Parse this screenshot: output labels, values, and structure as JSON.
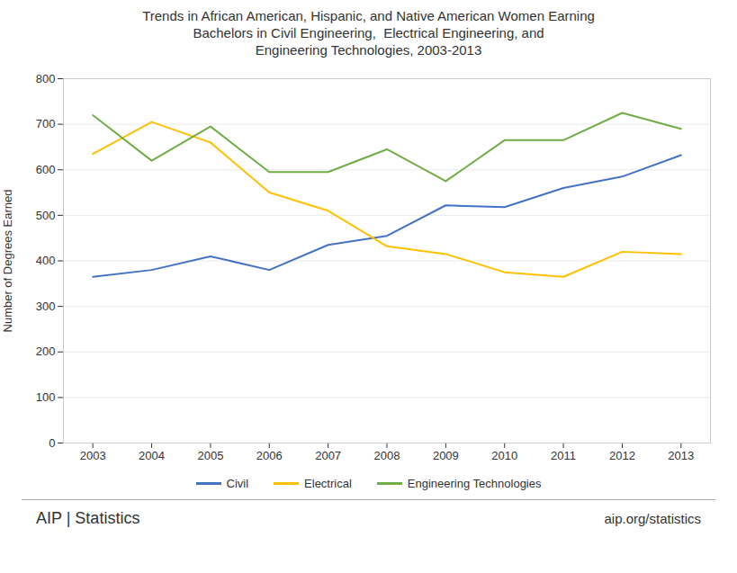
{
  "chart_data": {
    "type": "line",
    "title": "Trends in African American, Hispanic, and Native American Women Earning\nBachelors in Civil Engineering,  Electrical Engineering, and\nEngineering Technologies, 2003-2013",
    "ylabel": "Number of Degrees Earned",
    "x": [
      2003,
      2004,
      2005,
      2006,
      2007,
      2008,
      2009,
      2010,
      2011,
      2012,
      2013
    ],
    "series": [
      {
        "name": "Civil",
        "color": "#4472C4",
        "values": [
          365,
          380,
          410,
          380,
          435,
          455,
          522,
          518,
          560,
          585,
          632
        ]
      },
      {
        "name": "Electrical",
        "color": "#FFC000",
        "values": [
          635,
          705,
          660,
          550,
          510,
          432,
          415,
          375,
          365,
          420,
          415
        ]
      },
      {
        "name": "Engineering Technologies",
        "color": "#70AD47",
        "values": [
          720,
          620,
          695,
          595,
          595,
          645,
          575,
          665,
          665,
          725,
          690
        ]
      }
    ],
    "xlim": [
      2002.5,
      2013.5
    ],
    "xticks": [
      2003,
      2004,
      2005,
      2006,
      2007,
      2008,
      2009,
      2010,
      2011,
      2012,
      2013
    ],
    "ylim": [
      0,
      800
    ],
    "yticks": [
      0,
      100,
      200,
      300,
      400,
      500,
      600,
      700,
      800
    ],
    "grid": true,
    "legend": "bottom",
    "annotations": [
      "AIP",
      "|",
      "Statistics",
      "aip.org/statistics"
    ]
  }
}
